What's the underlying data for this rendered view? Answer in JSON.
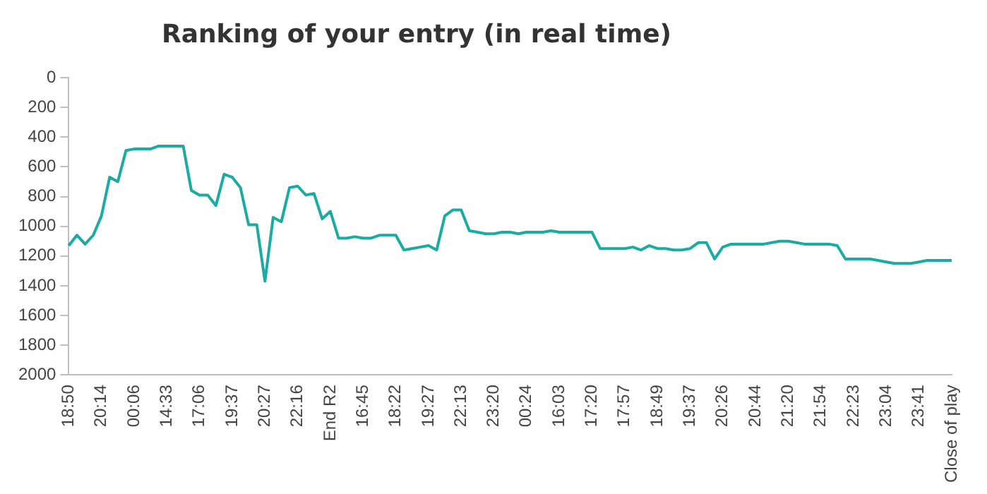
{
  "chart_data": {
    "type": "line",
    "title": "Ranking of your entry (in real time)",
    "categories": [
      "18:50",
      null,
      null,
      null,
      "20:14",
      null,
      null,
      null,
      "00:06",
      null,
      null,
      null,
      "14:33",
      null,
      null,
      null,
      "17:06",
      null,
      null,
      null,
      "19:37",
      null,
      null,
      null,
      "20:27",
      null,
      null,
      null,
      "22:16",
      null,
      null,
      null,
      "End R2",
      null,
      null,
      null,
      "16:45",
      null,
      null,
      null,
      "18:22",
      null,
      null,
      null,
      "19:27",
      null,
      null,
      null,
      "22:13",
      null,
      null,
      null,
      "23:20",
      null,
      null,
      null,
      "00:24",
      null,
      null,
      null,
      "16:03",
      null,
      null,
      null,
      "17:20",
      null,
      null,
      null,
      "17:57",
      null,
      null,
      null,
      "18:49",
      null,
      null,
      null,
      "19:37",
      null,
      null,
      null,
      "20:26",
      null,
      null,
      null,
      "20:44",
      null,
      null,
      null,
      "21:20",
      null,
      null,
      null,
      "21:54",
      null,
      null,
      null,
      "22:23",
      null,
      null,
      null,
      "23:04",
      null,
      null,
      null,
      "23:41",
      null,
      null,
      null,
      "Close of play"
    ],
    "series": [
      {
        "color": "#1aaba3",
        "values": [
          1130,
          1060,
          1120,
          1060,
          930,
          670,
          700,
          490,
          480,
          480,
          480,
          460,
          460,
          460,
          460,
          760,
          790,
          790,
          860,
          650,
          670,
          740,
          990,
          990,
          1370,
          940,
          970,
          740,
          730,
          790,
          780,
          950,
          900,
          1080,
          1080,
          1070,
          1080,
          1080,
          1060,
          1060,
          1060,
          1160,
          1150,
          1140,
          1130,
          1160,
          930,
          890,
          890,
          1030,
          1040,
          1050,
          1050,
          1040,
          1040,
          1050,
          1040,
          1040,
          1040,
          1030,
          1040,
          1040,
          1040,
          1040,
          1040,
          1150,
          1150,
          1150,
          1150,
          1140,
          1160,
          1130,
          1150,
          1150,
          1160,
          1160,
          1150,
          1110,
          1110,
          1220,
          1140,
          1120,
          1120,
          1120,
          1120,
          1120,
          1110,
          1100,
          1100,
          1110,
          1120,
          1120,
          1120,
          1120,
          1130,
          1220,
          1220,
          1220,
          1220,
          1230,
          1240,
          1250,
          1250,
          1250,
          1240,
          1230,
          1230,
          1230,
          1230
        ]
      }
    ],
    "ylim": [
      2000,
      0
    ],
    "yticks": [
      0,
      200,
      400,
      600,
      800,
      1000,
      1200,
      1400,
      1600,
      1800,
      2000
    ],
    "grid": false,
    "legend": false,
    "marker": "none"
  }
}
